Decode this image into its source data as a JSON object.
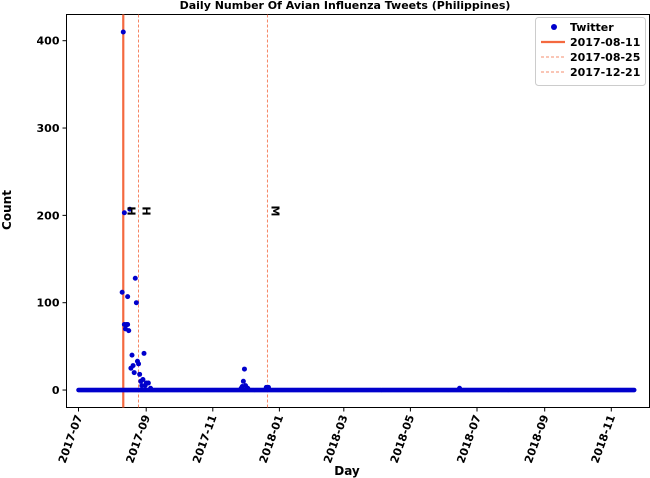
{
  "chart_data": {
    "type": "scatter",
    "title": "Daily Number Of Avian Influenza Tweets (Philippines)",
    "xlabel": "Day",
    "ylabel": "Count",
    "xlim": [
      "2017-06-20",
      "2018-12-06"
    ],
    "ylim": [
      -20,
      430
    ],
    "x_ticks": [
      "2017-07",
      "2017-09",
      "2017-11",
      "2018-01",
      "2018-03",
      "2018-05",
      "2018-07",
      "2018-09",
      "2018-11"
    ],
    "y_ticks": [
      0,
      100,
      200,
      300,
      400
    ],
    "grid": false,
    "legend_position": "top-right",
    "series": [
      {
        "name": "Twitter",
        "marker": "circle",
        "color": "#0000cc",
        "points": [
          [
            "2017-08-10",
            112
          ],
          [
            "2017-08-11",
            410
          ],
          [
            "2017-08-12",
            203
          ],
          [
            "2017-08-12",
            75
          ],
          [
            "2017-08-13",
            70
          ],
          [
            "2017-08-14",
            75
          ],
          [
            "2017-08-15",
            107
          ],
          [
            "2017-08-15",
            75
          ],
          [
            "2017-08-16",
            68
          ],
          [
            "2017-08-17",
            207
          ],
          [
            "2017-08-18",
            25
          ],
          [
            "2017-08-19",
            40
          ],
          [
            "2017-08-20",
            28
          ],
          [
            "2017-08-21",
            20
          ],
          [
            "2017-08-22",
            128
          ],
          [
            "2017-08-23",
            100
          ],
          [
            "2017-08-24",
            33
          ],
          [
            "2017-08-25",
            30
          ],
          [
            "2017-08-26",
            18
          ],
          [
            "2017-08-27",
            10
          ],
          [
            "2017-08-28",
            5
          ],
          [
            "2017-08-29",
            12
          ],
          [
            "2017-08-30",
            42
          ],
          [
            "2017-08-31",
            5
          ],
          [
            "2017-09-01",
            8
          ],
          [
            "2017-09-03",
            8
          ],
          [
            "2017-09-05",
            2
          ],
          [
            "2017-11-27",
            2
          ],
          [
            "2017-11-28",
            4
          ],
          [
            "2017-11-29",
            10
          ],
          [
            "2017-11-30",
            24
          ],
          [
            "2017-12-01",
            5
          ],
          [
            "2017-12-03",
            2
          ],
          [
            "2017-12-20",
            3
          ],
          [
            "2017-12-22",
            3
          ],
          [
            "2018-06-15",
            2
          ]
        ],
        "baseline": {
          "from": "2017-07-01",
          "to": "2018-11-22",
          "value": 0
        }
      }
    ],
    "vertical_lines": [
      {
        "date": "2017-08-11",
        "style": "solid",
        "color": "#f4693f",
        "legend": "2017-08-11"
      },
      {
        "date": "2017-08-25",
        "style": "dashed",
        "color": "#f4693f",
        "legend": "2017-08-25"
      },
      {
        "date": "2017-12-21",
        "style": "dashed",
        "color": "#f4693f",
        "legend": "2017-12-21"
      }
    ],
    "annotations": [
      {
        "text": "H",
        "date": "2017-08-11",
        "y": 205
      },
      {
        "text": "H",
        "date": "2017-08-25",
        "y": 205
      },
      {
        "text": "M",
        "date": "2017-12-21",
        "y": 205
      }
    ]
  }
}
